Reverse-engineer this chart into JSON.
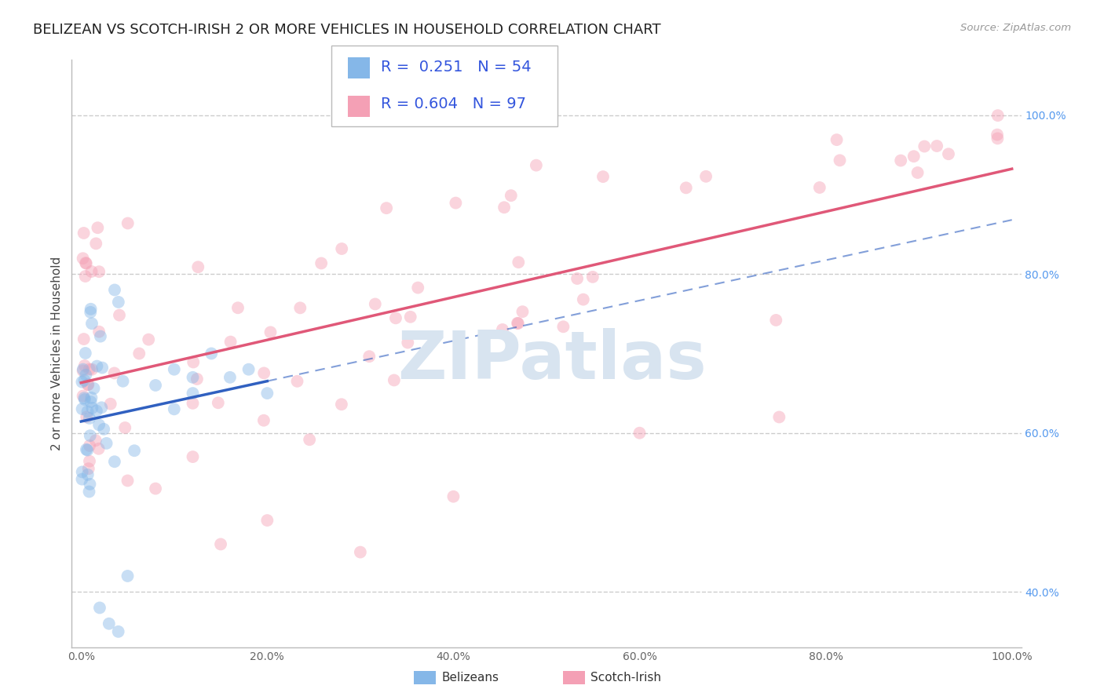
{
  "title": "BELIZEAN VS SCOTCH-IRISH 2 OR MORE VEHICLES IN HOUSEHOLD CORRELATION CHART",
  "source_text": "Source: ZipAtlas.com",
  "ylabel": "2 or more Vehicles in Household",
  "xlim": [
    -1,
    101
  ],
  "ylim": [
    33,
    107
  ],
  "background_color": "#ffffff",
  "belizean_color": "#85b7e8",
  "scotch_irish_color": "#f4a0b5",
  "belizean_line_color": "#3060c0",
  "scotch_irish_line_color": "#e05878",
  "R_belizean": 0.251,
  "N_belizean": 54,
  "R_scotch_irish": 0.604,
  "N_scotch_irish": 97,
  "xtick_labels": [
    "0.0%",
    "20.0%",
    "40.0%",
    "60.0%",
    "80.0%",
    "100.0%"
  ],
  "xtick_values": [
    0,
    20,
    40,
    60,
    80,
    100
  ],
  "ytick_labels_right": [
    "40.0%",
    "60.0%",
    "80.0%",
    "100.0%"
  ],
  "ytick_values_right": [
    40,
    60,
    80,
    100
  ],
  "title_fontsize": 13,
  "axis_label_fontsize": 11,
  "tick_fontsize": 10,
  "legend_fontsize": 14,
  "scatter_size": 130,
  "scatter_alpha": 0.45,
  "watermark_text": "ZIPatlas"
}
